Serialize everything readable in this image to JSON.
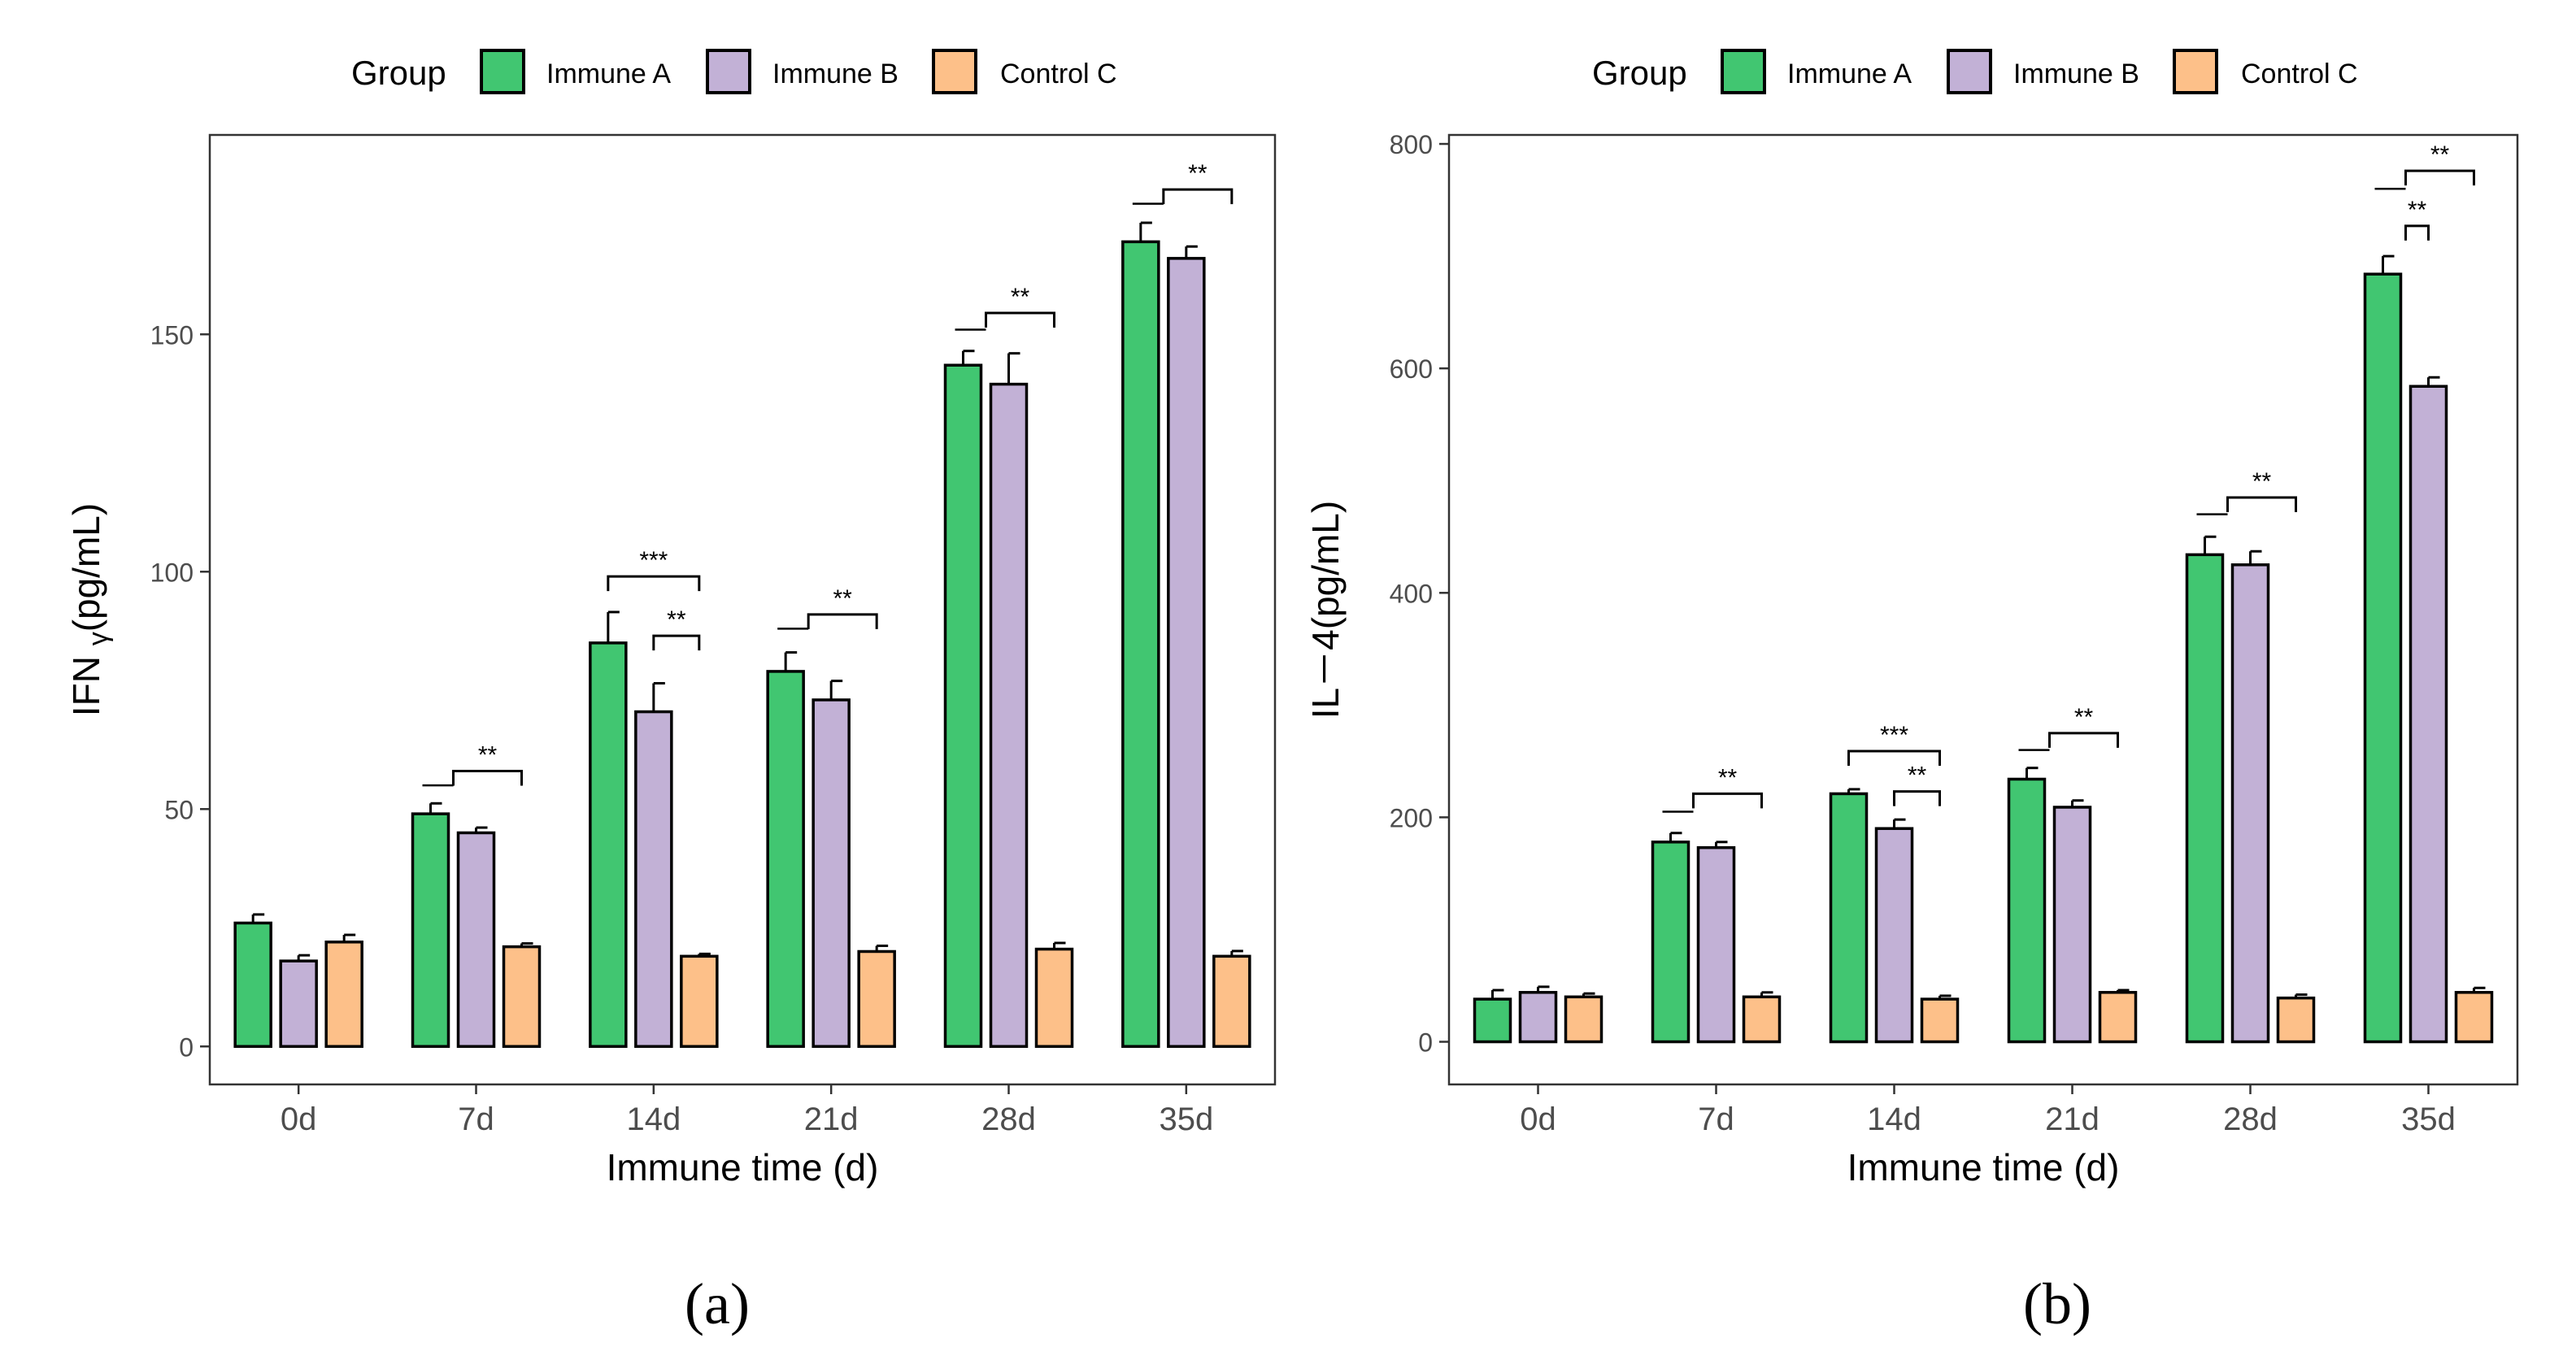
{
  "colors": {
    "Immune A": "#41c671",
    "Immune B": "#c2b1d6",
    "Control C": "#fdc089",
    "frame": "#333333",
    "text": "#4d4d4d"
  },
  "chart_data": [
    {
      "type": "bar",
      "panel_label": "(a)",
      "legend_title": "Group",
      "legend_position": "top",
      "xlabel": "Immune time (d)",
      "ylabel": "IFN γ(pg/mL)",
      "ylabel_parts": [
        "IFN ",
        "γ",
        "(pg/mL)"
      ],
      "categories": [
        "0d",
        "7d",
        "14d",
        "21d",
        "28d",
        "35d"
      ],
      "ylim": [
        -8,
        192
      ],
      "yticks": [
        0,
        50,
        100,
        150
      ],
      "series": [
        {
          "name": "Immune A",
          "values": [
            26,
            49,
            85,
            79,
            143.5,
            169.5
          ],
          "errors": [
            1.8,
            2.2,
            6.5,
            4,
            3,
            4
          ]
        },
        {
          "name": "Immune B",
          "values": [
            18,
            45,
            70.5,
            73,
            139.5,
            166
          ],
          "errors": [
            1.2,
            1.1,
            6,
            4,
            6.5,
            2.5
          ]
        },
        {
          "name": "Control C",
          "values": [
            22,
            21,
            19,
            20,
            20.5,
            19
          ],
          "errors": [
            1.5,
            0.7,
            0.5,
            1.2,
            1.3,
            1.1
          ]
        }
      ],
      "annotations": [
        {
          "category": "7d",
          "label": "**",
          "from": 0.5,
          "to": 2,
          "y": 58,
          "step_y": 55
        },
        {
          "category": "14d",
          "label": "***",
          "from": 0,
          "to": 2,
          "y": 99,
          "step_y": null
        },
        {
          "category": "14d",
          "label": "**",
          "from": 1,
          "to": 2,
          "y": 86.5,
          "step_y": null
        },
        {
          "category": "21d",
          "label": "**",
          "from": 0.5,
          "to": 2,
          "y": 91,
          "step_y": 88
        },
        {
          "category": "28d",
          "label": "**",
          "from": 0.5,
          "to": 2,
          "y": 154.5,
          "step_y": 151
        },
        {
          "category": "35d",
          "label": "**",
          "from": 0.5,
          "to": 2,
          "y": 180.5,
          "step_y": 177.5
        }
      ]
    },
    {
      "type": "bar",
      "panel_label": "(b)",
      "legend_title": "Group",
      "legend_position": "top",
      "xlabel": "Immune time (d)",
      "ylabel": "IL－4(pg/mL)",
      "ylabel_parts": [
        "IL－4(pg/mL)"
      ],
      "categories": [
        "0d",
        "7d",
        "14d",
        "21d",
        "28d",
        "35d"
      ],
      "ylim": [
        -38,
        808
      ],
      "yticks": [
        0,
        200,
        400,
        600,
        800
      ],
      "series": [
        {
          "name": "Immune A",
          "values": [
            38,
            178,
            221,
            234,
            434,
            684
          ],
          "errors": [
            8,
            8,
            4,
            10,
            16,
            16
          ]
        },
        {
          "name": "Immune B",
          "values": [
            44,
            173,
            190,
            209,
            425,
            584
          ],
          "errors": [
            5,
            5,
            8,
            6,
            12,
            8
          ]
        },
        {
          "name": "Control C",
          "values": [
            40,
            40,
            38,
            44,
            39,
            44
          ],
          "errors": [
            3,
            4,
            3,
            2,
            3,
            4
          ]
        }
      ],
      "annotations": [
        {
          "category": "7d",
          "label": "**",
          "from": 0.5,
          "to": 2,
          "y": 221,
          "step_y": 205
        },
        {
          "category": "14d",
          "label": "***",
          "from": 0,
          "to": 2,
          "y": 259,
          "step_y": null
        },
        {
          "category": "14d",
          "label": "**",
          "from": 1,
          "to": 2,
          "y": 223,
          "step_y": null
        },
        {
          "category": "21d",
          "label": "**",
          "from": 0.5,
          "to": 2,
          "y": 275,
          "step_y": 260
        },
        {
          "category": "28d",
          "label": "**",
          "from": 0.5,
          "to": 2,
          "y": 485,
          "step_y": 470
        },
        {
          "category": "35d",
          "label": "**",
          "from": 0.5,
          "to": 2,
          "y": 776,
          "step_y": 760
        },
        {
          "category": "35d",
          "label": "**",
          "from": 0.5,
          "to": 1,
          "y": 727,
          "step_y": null
        }
      ]
    }
  ]
}
